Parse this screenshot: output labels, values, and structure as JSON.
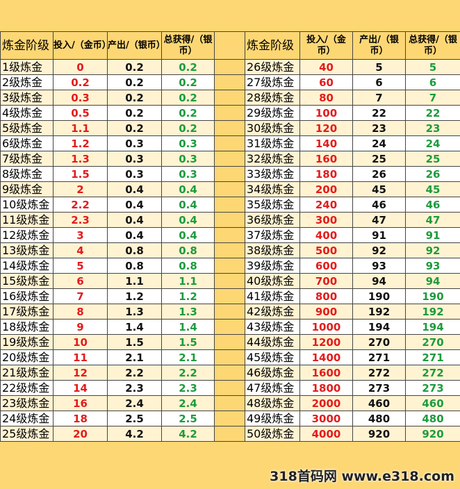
{
  "table": {
    "header": [
      "炼金阶级",
      "投入/（金币）",
      "产出/（银币）",
      "总获得/（银币）"
    ],
    "rows": [
      [
        "1级炼金",
        "0",
        "0.2",
        "0.2"
      ],
      [
        "2级炼金",
        "0.2",
        "0.2",
        "0.2"
      ],
      [
        "3级炼金",
        "0.3",
        "0.2",
        "0.2"
      ],
      [
        "4级炼金",
        "0.5",
        "0.2",
        "0.2"
      ],
      [
        "5级炼金",
        "1.1",
        "0.2",
        "0.2"
      ],
      [
        "6级炼金",
        "1.2",
        "0.3",
        "0.3"
      ],
      [
        "7级炼金",
        "1.3",
        "0.3",
        "0.3"
      ],
      [
        "8级炼金",
        "1.5",
        "0.3",
        "0.3"
      ],
      [
        "9级炼金",
        "2",
        "0.4",
        "0.4"
      ],
      [
        "10级炼金",
        "2.2",
        "0.4",
        "0.4"
      ],
      [
        "11级炼金",
        "2.3",
        "0.4",
        "0.4"
      ],
      [
        "12级炼金",
        "3",
        "0.4",
        "0.4"
      ],
      [
        "13级炼金",
        "4",
        "0.8",
        "0.8"
      ],
      [
        "14级炼金",
        "5",
        "0.8",
        "0.8"
      ],
      [
        "15级炼金",
        "6",
        "1.1",
        "1.1"
      ],
      [
        "16级炼金",
        "7",
        "1.2",
        "1.2"
      ],
      [
        "17级炼金",
        "8",
        "1.3",
        "1.3"
      ],
      [
        "18级炼金",
        "9",
        "1.4",
        "1.4"
      ],
      [
        "19级炼金",
        "10",
        "1.5",
        "1.5"
      ],
      [
        "20级炼金",
        "11",
        "2.1",
        "2.1"
      ],
      [
        "21级炼金",
        "12",
        "2.2",
        "2.2"
      ],
      [
        "22级炼金",
        "14",
        "2.3",
        "2.3"
      ],
      [
        "23级炼金",
        "16",
        "2.4",
        "2.4"
      ],
      [
        "24级炼金",
        "18",
        "2.5",
        "2.5"
      ],
      [
        "25级炼金",
        "20",
        "4.2",
        "4.2"
      ],
      [
        "26级炼金",
        "40",
        "5",
        "5"
      ],
      [
        "27级炼金",
        "60",
        "6",
        "6"
      ],
      [
        "28级炼金",
        "80",
        "7",
        "7"
      ],
      [
        "29级炼金",
        "100",
        "22",
        "22"
      ],
      [
        "30级炼金",
        "120",
        "23",
        "23"
      ],
      [
        "31级炼金",
        "140",
        "24",
        "24"
      ],
      [
        "32级炼金",
        "160",
        "25",
        "25"
      ],
      [
        "33级炼金",
        "180",
        "26",
        "26"
      ],
      [
        "34级炼金",
        "200",
        "45",
        "45"
      ],
      [
        "35级炼金",
        "240",
        "46",
        "46"
      ],
      [
        "36级炼金",
        "300",
        "47",
        "47"
      ],
      [
        "37级炼金",
        "400",
        "91",
        "91"
      ],
      [
        "38级炼金",
        "500",
        "92",
        "92"
      ],
      [
        "39级炼金",
        "600",
        "93",
        "93"
      ],
      [
        "40级炼金",
        "700",
        "94",
        "94"
      ],
      [
        "41级炼金",
        "800",
        "190",
        "190"
      ],
      [
        "42级炼金",
        "900",
        "192",
        "192"
      ],
      [
        "43级炼金",
        "1000",
        "194",
        "194"
      ],
      [
        "44级炼金",
        "1200",
        "270",
        "270"
      ],
      [
        "45级炼金",
        "1400",
        "271",
        "271"
      ],
      [
        "46级炼金",
        "1600",
        "272",
        "272"
      ],
      [
        "47级炼金",
        "1800",
        "273",
        "273"
      ],
      [
        "48级炼金",
        "2000",
        "460",
        "460"
      ],
      [
        "49级炼金",
        "3000",
        "480",
        "480"
      ],
      [
        "50级炼金",
        "4000",
        "920",
        "920"
      ]
    ]
  },
  "watermark": "318首码网 www.e318.com"
}
